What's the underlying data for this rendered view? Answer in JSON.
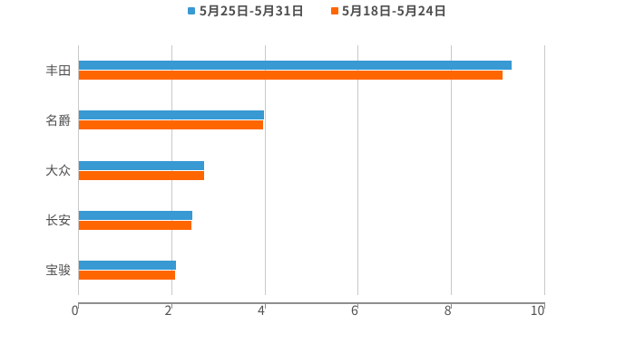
{
  "chart_data": {
    "type": "bar",
    "orientation": "horizontal",
    "title": "",
    "categories": [
      "丰田",
      "名爵",
      "大众",
      "长安",
      "宝骏"
    ],
    "series": [
      {
        "name": "5月25日-5月31日",
        "color": "#3899d3",
        "values": [
          9.3,
          3.98,
          2.69,
          2.44,
          2.09
        ]
      },
      {
        "name": "5月18日-5月24日",
        "color": "#ff6600",
        "values": [
          9.1,
          3.97,
          2.69,
          2.43,
          2.08
        ]
      }
    ],
    "x_ticks": [
      "0",
      "2",
      "4",
      "6",
      "8",
      "10"
    ],
    "xlim": [
      0,
      10
    ],
    "grid": "vertical",
    "legend_position": "top"
  },
  "colors": {
    "background": "#ffffff",
    "grid_line": "#c9c9c9",
    "axis_line": "#8e8e8e",
    "text": "#4f4f4f"
  }
}
